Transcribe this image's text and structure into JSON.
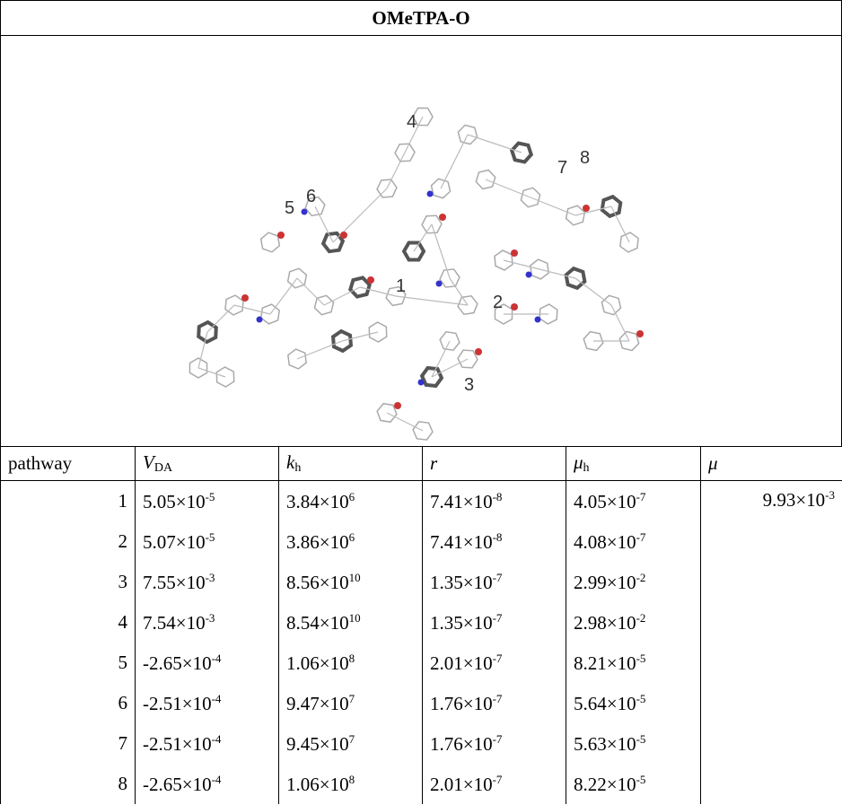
{
  "header": {
    "title": "OMeTPA-O"
  },
  "figure": {
    "labels": [
      "1",
      "2",
      "3",
      "4",
      "5",
      "6",
      "7",
      "8"
    ]
  },
  "table": {
    "columns": [
      {
        "text": "pathway"
      },
      {
        "symbol": "V",
        "subscript": "DA"
      },
      {
        "symbol": "k",
        "subscript": "h"
      },
      {
        "symbol": "r"
      },
      {
        "symbol": "μ",
        "subscript": "h"
      },
      {
        "symbol": "μ"
      }
    ],
    "rows": [
      [
        "1",
        {
          "mantissa": "5.05×10",
          "exponent": "-5"
        },
        {
          "mantissa": "3.84×10",
          "exponent": "6"
        },
        {
          "mantissa": "7.41×10",
          "exponent": "-8"
        },
        {
          "mantissa": "4.05×10",
          "exponent": "-7"
        }
      ],
      [
        "2",
        {
          "mantissa": "5.07×10",
          "exponent": "-5"
        },
        {
          "mantissa": "3.86×10",
          "exponent": "6"
        },
        {
          "mantissa": "7.41×10",
          "exponent": "-8"
        },
        {
          "mantissa": "4.08×10",
          "exponent": "-7"
        }
      ],
      [
        "3",
        {
          "mantissa": "7.55×10",
          "exponent": "-3"
        },
        {
          "mantissa": "8.56×10",
          "exponent": "10"
        },
        {
          "mantissa": "1.35×10",
          "exponent": "-7"
        },
        {
          "mantissa": "2.99×10",
          "exponent": "-2"
        }
      ],
      [
        "4",
        {
          "mantissa": "7.54×10",
          "exponent": "-3"
        },
        {
          "mantissa": "8.54×10",
          "exponent": "10"
        },
        {
          "mantissa": "1.35×10",
          "exponent": "-7"
        },
        {
          "mantissa": "2.98×10",
          "exponent": "-2"
        }
      ],
      [
        "5",
        {
          "mantissa": "-2.65×10",
          "exponent": "-4"
        },
        {
          "mantissa": "1.06×10",
          "exponent": "8"
        },
        {
          "mantissa": "2.01×10",
          "exponent": "-7"
        },
        {
          "mantissa": "8.21×10",
          "exponent": "-5"
        }
      ],
      [
        "6",
        {
          "mantissa": "-2.51×10",
          "exponent": "-4"
        },
        {
          "mantissa": "9.47×10",
          "exponent": "7"
        },
        {
          "mantissa": "1.76×10",
          "exponent": "-7"
        },
        {
          "mantissa": "5.64×10",
          "exponent": "-5"
        }
      ],
      [
        "7",
        {
          "mantissa": "-2.51×10",
          "exponent": "-4"
        },
        {
          "mantissa": "9.45×10",
          "exponent": "7"
        },
        {
          "mantissa": "1.76×10",
          "exponent": "-7"
        },
        {
          "mantissa": "5.63×10",
          "exponent": "-5"
        }
      ],
      [
        "8",
        {
          "mantissa": "-2.65×10",
          "exponent": "-4"
        },
        {
          "mantissa": "1.06×10",
          "exponent": "8"
        },
        {
          "mantissa": "2.01×10",
          "exponent": "-7"
        },
        {
          "mantissa": "8.22×10",
          "exponent": "-5"
        }
      ]
    ],
    "mobility": {
      "mantissa": "9.93×10",
      "exponent": "-3"
    }
  }
}
